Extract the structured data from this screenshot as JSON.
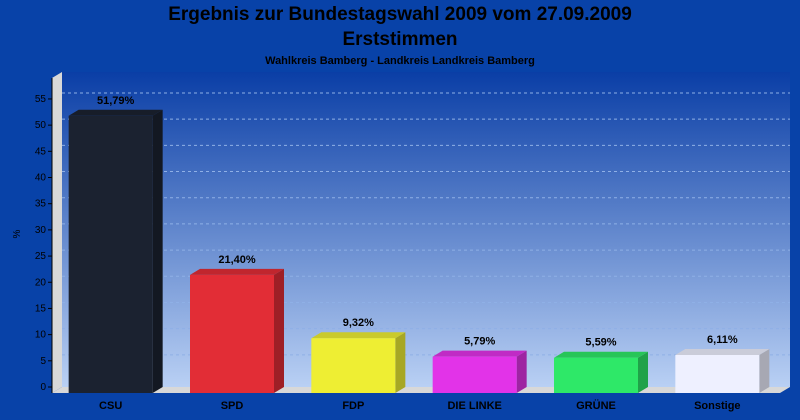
{
  "chart_data": {
    "type": "bar",
    "title": "Ergebnis zur Bundestagswahl 2009 vom 27.09.2009",
    "subtitle": "Erststimmen",
    "caption": "Wahlkreis Bamberg - Landkreis Landkreis Bamberg",
    "ylabel": "%",
    "xlabel": "",
    "ylim": [
      0,
      59
    ],
    "yticks": [
      0,
      5,
      10,
      15,
      20,
      25,
      30,
      35,
      40,
      45,
      50,
      55
    ],
    "grid": true,
    "legend": "none",
    "categories": [
      "CSU",
      "SPD",
      "FDP",
      "DIE LINKE",
      "GRÜNE",
      "Sonstige"
    ],
    "values": [
      51.79,
      21.4,
      9.32,
      5.79,
      5.59,
      6.11
    ],
    "value_labels": [
      "51,79%",
      "21,40%",
      "9,32%",
      "5,79%",
      "5,59%",
      "6,11%"
    ],
    "colors": [
      "#1b2230",
      "#e22d36",
      "#eeee33",
      "#e233e8",
      "#2ee868",
      "#eef0ff"
    ]
  }
}
